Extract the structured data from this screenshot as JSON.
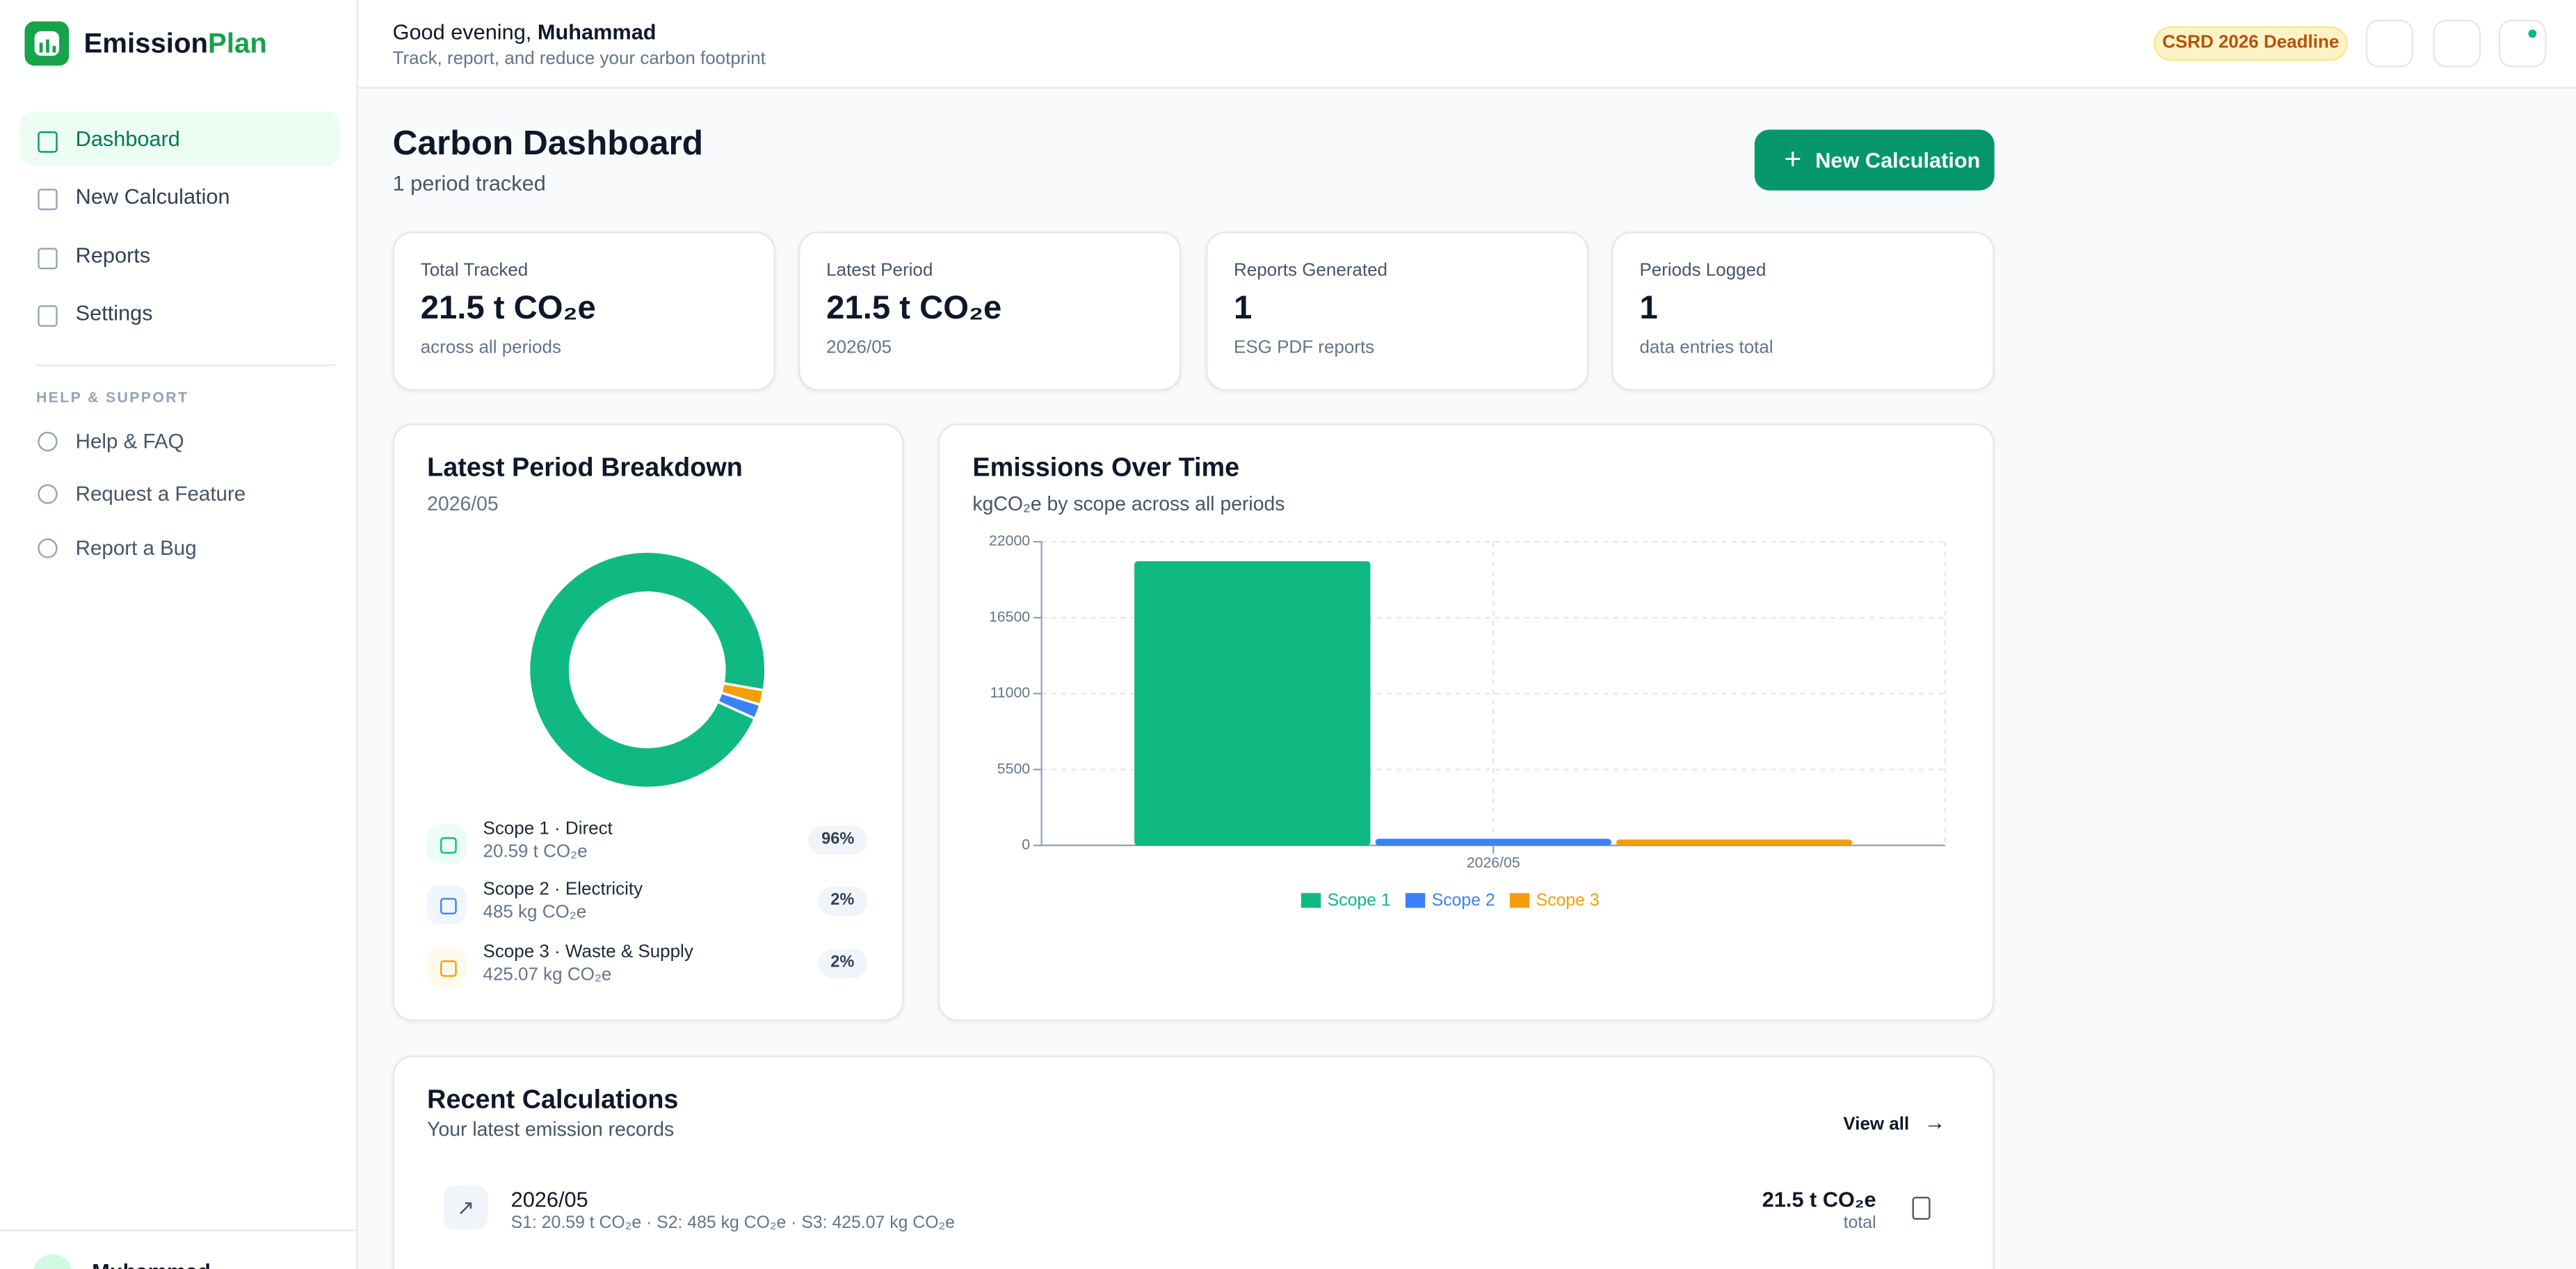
{
  "sidebar": {
    "brand": {
      "name": "Emission",
      "accent": "Plan"
    },
    "nav": [
      "Dashboard",
      "New Calculation",
      "Reports",
      "Settings"
    ],
    "section_title": "HELP & SUPPORT",
    "support": [
      "Help & FAQ",
      "Request a Feature",
      "Report a Bug"
    ],
    "user_name": "Muhammad"
  },
  "header": {
    "greeting": "Good evening,",
    "name": "Muhammad",
    "subtitle": "Track, report, and reduce your carbon footprint",
    "badge": "CSRD 2026 Deadline"
  },
  "page": {
    "title": "Carbon Dashboard",
    "subtitle": "1 period tracked",
    "action": "New Calculation"
  },
  "stats": [
    {
      "label": "Total Tracked",
      "value": "21.5 t CO₂e",
      "note": "across all periods"
    },
    {
      "label": "Latest Period",
      "value": "21.5 t CO₂e",
      "note": "2026/05"
    },
    {
      "label": "Reports Generated",
      "value": "1",
      "note": "ESG PDF reports"
    },
    {
      "label": "Periods Logged",
      "value": "1",
      "note": "data entries total"
    }
  ],
  "breakdown": {
    "title": "Latest Period Breakdown",
    "subtitle": "2026/05",
    "chart_data": {
      "type": "pie",
      "donut": true,
      "categories": [
        "Scope 1 · Direct",
        "Scope 2 · Electricity",
        "Scope 3 · Waste & Supply"
      ],
      "values": [
        96,
        2,
        2
      ],
      "value_labels": [
        "96%",
        "2%",
        "2%"
      ],
      "colors": [
        "#10b981",
        "#3b82f6",
        "#f59e0b"
      ]
    },
    "amounts": [
      "20.59 t CO₂e",
      "485 kg CO₂e",
      "425.07 kg CO₂e"
    ]
  },
  "emissions": {
    "chart_data": {
      "type": "bar",
      "title": "Emissions Over Time",
      "subtitle": "kgCO₂e by scope across all periods",
      "categories": [
        "2026/05"
      ],
      "series": [
        {
          "name": "Scope 1",
          "color": "#10b981",
          "values": [
            20590
          ]
        },
        {
          "name": "Scope 2",
          "color": "#3b82f6",
          "values": [
            485
          ]
        },
        {
          "name": "Scope 3",
          "color": "#f59e0b",
          "values": [
            425.07
          ]
        }
      ],
      "ylim": [
        0,
        22000
      ],
      "yticks": [
        0,
        5500,
        11000,
        16500,
        22000
      ],
      "grid": true,
      "legend": "bottom"
    }
  },
  "recent": {
    "title": "Recent Calculations",
    "subtitle": "Your latest emission records",
    "view_all": "View all",
    "rows": [
      {
        "period": "2026/05",
        "detail": "S1: 20.59 t CO₂e · S2: 485 kg CO₂e · S3: 425.07 kg CO₂e",
        "total": "21.5 t CO₂e",
        "total_note": "total"
      }
    ]
  }
}
